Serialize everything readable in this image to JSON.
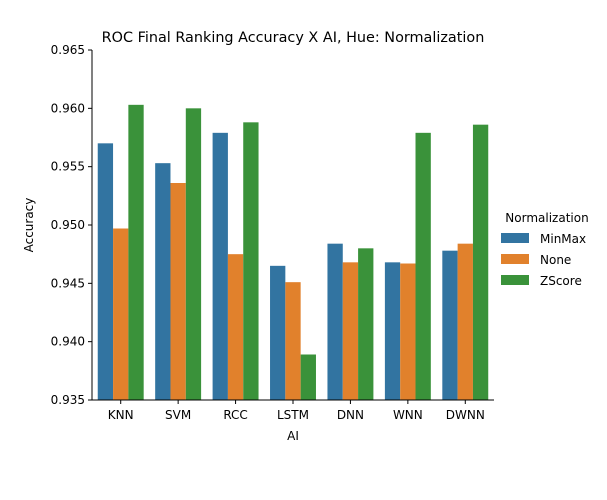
{
  "chart_data": {
    "type": "bar",
    "title": "ROC Final Ranking Accuracy X AI, Hue: Normalization",
    "xlabel": "AI",
    "ylabel": "Accuracy",
    "categories": [
      "KNN",
      "SVM",
      "RCC",
      "LSTM",
      "DNN",
      "WNN",
      "DWNN"
    ],
    "ylim": [
      0.935,
      0.965
    ],
    "yticks": [
      "0.935",
      "0.940",
      "0.945",
      "0.950",
      "0.955",
      "0.960",
      "0.965"
    ],
    "grid": false,
    "legend": {
      "title": "Normalization",
      "placement": "right"
    },
    "series": [
      {
        "name": "MinMax",
        "color": "#3274a1",
        "values": [
          0.957,
          0.9553,
          0.9579,
          0.9465,
          0.9484,
          0.9468,
          0.9478
        ]
      },
      {
        "name": "None",
        "color": "#e1812c",
        "values": [
          0.9497,
          0.9536,
          0.9475,
          0.9451,
          0.9468,
          0.9467,
          0.9484
        ]
      },
      {
        "name": "ZScore",
        "color": "#3a923a",
        "values": [
          0.9603,
          0.96,
          0.9588,
          0.9389,
          0.948,
          0.9579,
          0.9586
        ]
      }
    ]
  }
}
